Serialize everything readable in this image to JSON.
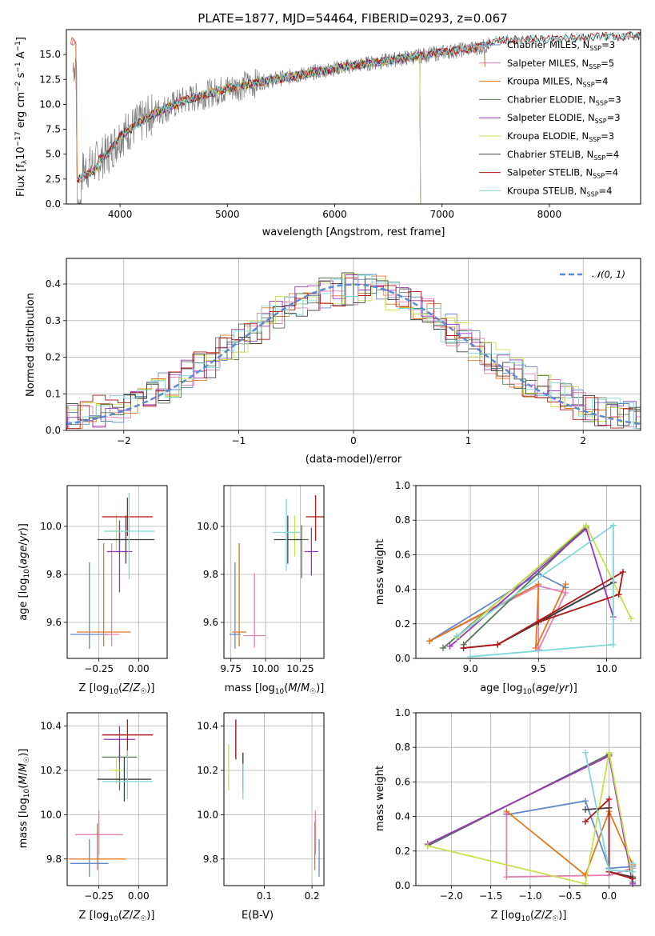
{
  "colors": {
    "chabrier_miles": "#6688cc",
    "salpeter_miles": "#e87fb4",
    "kroupa_miles": "#e07820",
    "chabrier_elodie": "#557755",
    "salpeter_elodie": "#9933bb",
    "kroupa_elodie": "#c8e050",
    "chabrier_stelib": "#404040",
    "salpeter_stelib": "#b01818",
    "kroupa_stelib": "#7fd8d8",
    "data": "#808080",
    "normal": "#5b8bd6"
  },
  "chart_data": [
    {
      "id": "spectrum",
      "type": "line",
      "title": "PLATE=1877, MJD=54464, FIBERID=0293, z=0.067",
      "xlabel": "wavelength [Angstrom, rest frame]",
      "ylabel": "Flux [f_λ10^-17 erg cm^-2 s^-1 A^-1]",
      "xlim": [
        3500,
        8850
      ],
      "ylim": [
        0,
        17.5
      ],
      "xticks": [
        "4000",
        "5000",
        "6000",
        "7000",
        "8000"
      ],
      "yticks": [
        "0.0",
        "2.5",
        "5.0",
        "7.5",
        "10.0",
        "12.5",
        "15.0"
      ],
      "grid": true,
      "legend_position": "upper-right",
      "series": [
        {
          "name": "Chabrier MILES, N_SSP=3",
          "key": "chabrier_miles"
        },
        {
          "name": "Salpeter MILES, N_SSP=5",
          "key": "salpeter_miles"
        },
        {
          "name": "Kroupa MILES, N_SSP=4",
          "key": "kroupa_miles"
        },
        {
          "name": "Chabrier ELODIE, N_SSP=3",
          "key": "chabrier_elodie"
        },
        {
          "name": "Salpeter ELODIE, N_SSP=3",
          "key": "salpeter_elodie"
        },
        {
          "name": "Kroupa ELODIE, N_SSP=3",
          "key": "kroupa_elodie"
        },
        {
          "name": "Chabrier STELIB, N_SSP=4",
          "key": "chabrier_stelib"
        },
        {
          "name": "Salpeter STELIB, N_SSP=4",
          "key": "salpeter_stelib"
        },
        {
          "name": "Kroupa STELIB, N_SSP=4",
          "key": "kroupa_stelib"
        }
      ],
      "continuum": [
        [
          3600,
          3.0
        ],
        [
          3700,
          3.6
        ],
        [
          3900,
          5.2
        ],
        [
          4000,
          6.8
        ],
        [
          4300,
          9.0
        ],
        [
          4600,
          10.4
        ],
        [
          5000,
          11.6
        ],
        [
          5500,
          12.6
        ],
        [
          6000,
          13.6
        ],
        [
          6500,
          14.4
        ],
        [
          7000,
          15.2
        ],
        [
          7400,
          15.8
        ],
        [
          7500,
          16.4
        ],
        [
          8000,
          16.6
        ],
        [
          8850,
          16.9
        ]
      ],
      "model_coverage": {
        "miles": [
          3540,
          7400
        ],
        "elodie": [
          3600,
          6800
        ],
        "stelib": [
          3600,
          8850
        ]
      }
    },
    {
      "id": "residuals",
      "type": "line",
      "xlabel": "(data-model)/error",
      "ylabel": "Normed distribution",
      "xlim": [
        -2.5,
        2.5
      ],
      "ylim": [
        0,
        0.47
      ],
      "xticks": [
        "−2",
        "−1",
        "0",
        "1",
        "2"
      ],
      "yticks": [
        "0.0",
        "0.1",
        "0.2",
        "0.3",
        "0.4"
      ],
      "grid": true,
      "legend_position": "upper-right",
      "legend": "N(0,1)",
      "gaussian": {
        "mean": 0,
        "sigma": 1
      }
    },
    {
      "id": "age_vs_Z",
      "type": "scatter",
      "xlabel": "Z [log10(Z/Z☉)]",
      "ylabel": "age  [log10(age/yr)]",
      "xlim": [
        -0.45,
        0.18
      ],
      "ylim": [
        9.45,
        10.17
      ],
      "xticks": [
        "−0.25",
        "0.00"
      ],
      "yticks": [
        "9.6",
        "9.8",
        "10.0"
      ],
      "grid": true,
      "points": [
        {
          "key": "chabrier_miles",
          "x": -0.31,
          "y": 9.55,
          "xerr": 0.12,
          "yerr": [
            0.06,
            0.3
          ]
        },
        {
          "key": "salpeter_miles",
          "x": -0.17,
          "y": 9.55,
          "xerr": 0.05,
          "yerr": [
            0.05,
            0.38
          ]
        },
        {
          "key": "kroupa_miles",
          "x": -0.22,
          "y": 9.56,
          "xerr": 0.17,
          "yerr": [
            0.06,
            0.37
          ]
        },
        {
          "key": "chabrier_elodie",
          "x": -0.12,
          "y": 9.945,
          "xerr": 0.06,
          "yerr": [
            0.06,
            0.06
          ]
        },
        {
          "key": "salpeter_elodie",
          "x": -0.12,
          "y": 9.895,
          "xerr": 0.08,
          "yerr": [
            0.17,
            0.13
          ]
        },
        {
          "key": "kroupa_elodie",
          "x": -0.14,
          "y": 9.98,
          "xerr": 0.04,
          "yerr": [
            0.08,
            0.07
          ]
        },
        {
          "key": "chabrier_stelib",
          "x": -0.08,
          "y": 9.945,
          "xerr": 0.18,
          "yerr": [
            0.1,
            0.1
          ]
        },
        {
          "key": "salpeter_stelib",
          "x": -0.07,
          "y": 10.04,
          "xerr": 0.16,
          "yerr": [
            0.08,
            0.08
          ]
        },
        {
          "key": "kroupa_stelib",
          "x": -0.06,
          "y": 9.98,
          "xerr": 0.16,
          "yerr": [
            0.2,
            0.16
          ]
        }
      ]
    },
    {
      "id": "age_vs_mass",
      "type": "scatter",
      "xlabel": "mass [log10(M/M☉)]",
      "ylabel": "",
      "xlim": [
        9.7,
        10.42
      ],
      "ylim": [
        9.45,
        10.17
      ],
      "xticks": [
        "9.75",
        "10.00",
        "10.25"
      ],
      "yticks": [
        "9.6",
        "9.8",
        "10.0"
      ],
      "grid": true,
      "points": [
        {
          "key": "chabrier_miles",
          "x": 9.78,
          "y": 9.55,
          "xerr": 0.04,
          "yerr": [
            0.06,
            0.3
          ]
        },
        {
          "key": "salpeter_miles",
          "x": 9.92,
          "y": 9.545,
          "xerr": 0.08,
          "yerr": [
            0.05,
            0.26
          ]
        },
        {
          "key": "kroupa_miles",
          "x": 9.81,
          "y": 9.56,
          "xerr": 0.05,
          "yerr": [
            0.06,
            0.37
          ]
        },
        {
          "key": "chabrier_elodie",
          "x": 10.26,
          "y": 9.945,
          "xerr": 0.05,
          "yerr": [
            0.16,
            0.06
          ]
        },
        {
          "key": "salpeter_elodie",
          "x": 10.33,
          "y": 9.895,
          "xerr": 0.05,
          "yerr": [
            0.1,
            0.1
          ]
        },
        {
          "key": "kroupa_elodie",
          "x": 10.21,
          "y": 9.975,
          "xerr": 0.04,
          "yerr": [
            0.1,
            0.07
          ]
        },
        {
          "key": "chabrier_stelib",
          "x": 10.16,
          "y": 9.945,
          "xerr": 0.1,
          "yerr": [
            0.1,
            0.1
          ]
        },
        {
          "key": "salpeter_stelib",
          "x": 10.36,
          "y": 10.04,
          "xerr": 0.07,
          "yerr": [
            0.1,
            0.09
          ]
        },
        {
          "key": "kroupa_stelib",
          "x": 10.15,
          "y": 9.975,
          "xerr": 0.1,
          "yerr": [
            0.16,
            0.14
          ]
        }
      ]
    },
    {
      "id": "weight_vs_age",
      "type": "line",
      "xlabel": "age  [log10(age/yr)]",
      "ylabel": "mass weight",
      "xlim": [
        8.6,
        10.25
      ],
      "ylim": [
        0,
        1
      ],
      "xticks": [
        "9.0",
        "9.5",
        "10.0"
      ],
      "yticks": [
        "0.0",
        "0.2",
        "0.4",
        "0.6",
        "0.8",
        "1.0"
      ],
      "grid": true,
      "series": [
        {
          "key": "chabrier_miles",
          "x": [
            8.7,
            9.5,
            9.7
          ],
          "y": [
            0.1,
            0.49,
            0.41
          ]
        },
        {
          "key": "salpeter_miles",
          "x": [
            8.7,
            9.5,
            9.7,
            9.5,
            9.5
          ],
          "y": [
            0.1,
            0.42,
            0.38,
            0.05,
            0.42
          ]
        },
        {
          "key": "kroupa_miles",
          "x": [
            8.7,
            9.5,
            9.48,
            9.7
          ],
          "y": [
            0.1,
            0.43,
            0.06,
            0.43
          ]
        },
        {
          "key": "chabrier_elodie",
          "x": [
            8.8,
            9.85,
            8.95
          ],
          "y": [
            0.06,
            0.76,
            0.08
          ]
        },
        {
          "key": "salpeter_elodie",
          "x": [
            8.85,
            9.85,
            10.05
          ],
          "y": [
            0.07,
            0.75,
            0.24
          ]
        },
        {
          "key": "kroupa_elodie",
          "x": [
            8.9,
            9.85,
            10.18
          ],
          "y": [
            0.12,
            0.77,
            0.23
          ]
        },
        {
          "key": "chabrier_stelib",
          "x": [
            8.95,
            9.2,
            10.05,
            9.5
          ],
          "y": [
            0.06,
            0.08,
            0.44,
            0.21
          ]
        },
        {
          "key": "salpeter_stelib",
          "x": [
            8.95,
            9.2,
            10.12,
            10.09,
            9.5
          ],
          "y": [
            0.06,
            0.08,
            0.5,
            0.37,
            0.21
          ]
        },
        {
          "key": "kroupa_stelib",
          "x": [
            9.0,
            10.05,
            10.05,
            8.9
          ],
          "y": [
            0.01,
            0.08,
            0.77,
            0.13
          ]
        }
      ]
    },
    {
      "id": "mass_vs_Z",
      "type": "scatter",
      "xlabel": "Z [log10(Z/Z☉)]",
      "ylabel": "mass [log10(M/M☉)]",
      "xlim": [
        -0.45,
        0.18
      ],
      "ylim": [
        9.68,
        10.46
      ],
      "xticks": [
        "−0.25",
        "0.00"
      ],
      "yticks": [
        "9.8",
        "10.0",
        "10.2",
        "10.4"
      ],
      "grid": true,
      "points": [
        {
          "key": "chabrier_miles",
          "x": -0.31,
          "y": 9.78,
          "xerr": 0.12,
          "yerr": [
            0.06,
            0.11
          ]
        },
        {
          "key": "salpeter_miles",
          "x": -0.25,
          "y": 9.91,
          "xerr": 0.15,
          "yerr": [
            0.09,
            0.11
          ]
        },
        {
          "key": "kroupa_miles",
          "x": -0.26,
          "y": 9.8,
          "xerr": 0.18,
          "yerr": [
            0.05,
            0.16
          ]
        },
        {
          "key": "chabrier_elodie",
          "x": -0.12,
          "y": 10.26,
          "xerr": 0.11,
          "yerr": [
            0.15,
            0.06
          ]
        },
        {
          "key": "salpeter_elodie",
          "x": -0.12,
          "y": 10.34,
          "xerr": 0.1,
          "yerr": [
            0.1,
            0.06
          ]
        },
        {
          "key": "kroupa_elodie",
          "x": -0.14,
          "y": 10.2,
          "xerr": 0.04,
          "yerr": [
            0.06,
            0.06
          ]
        },
        {
          "key": "chabrier_stelib",
          "x": -0.09,
          "y": 10.16,
          "xerr": 0.17,
          "yerr": [
            0.1,
            0.1
          ]
        },
        {
          "key": "salpeter_stelib",
          "x": -0.07,
          "y": 10.36,
          "xerr": 0.16,
          "yerr": [
            0.1,
            0.07
          ]
        },
        {
          "key": "kroupa_stelib",
          "x": -0.07,
          "y": 10.15,
          "xerr": 0.16,
          "yerr": [
            0.08,
            0.14
          ]
        }
      ]
    },
    {
      "id": "mass_vs_ebv",
      "type": "scatter",
      "xlabel": "E(B-V)",
      "ylabel": "",
      "xlim": [
        0.015,
        0.225
      ],
      "ylim": [
        9.68,
        10.46
      ],
      "xticks": [
        "0.1",
        "0.2"
      ],
      "yticks": [
        "9.8",
        "10.0",
        "10.2",
        "10.4"
      ],
      "grid": true,
      "points": [
        {
          "key": "chabrier_miles",
          "x": 0.215,
          "y": 9.8,
          "yerr": [
            0.08,
            0.09
          ]
        },
        {
          "key": "salpeter_miles",
          "x": 0.207,
          "y": 9.92,
          "yerr": [
            0.1,
            0.1
          ]
        },
        {
          "key": "kroupa_miles",
          "x": 0.206,
          "y": 9.85,
          "yerr": [
            0.1,
            0.12
          ]
        },
        {
          "key": "chabrier_elodie",
          "x": 0.055,
          "y": 10.2,
          "yerr": [
            0.1,
            0.08
          ]
        },
        {
          "key": "salpeter_elodie",
          "x": 0.04,
          "y": 10.35,
          "yerr": [
            0.1,
            0.08
          ]
        },
        {
          "key": "kroupa_elodie",
          "x": 0.025,
          "y": 10.2,
          "yerr": [
            0.09,
            0.12
          ]
        },
        {
          "key": "chabrier_stelib",
          "x": 0.055,
          "y": 10.2,
          "yerr": [
            0.08,
            0.08
          ]
        },
        {
          "key": "salpeter_stelib",
          "x": 0.04,
          "y": 10.35,
          "yerr": [
            0.1,
            0.08
          ]
        },
        {
          "key": "kroupa_stelib",
          "x": 0.055,
          "y": 10.15,
          "yerr": [
            0.08,
            0.08
          ]
        }
      ]
    },
    {
      "id": "weight_vs_Z",
      "type": "line",
      "xlabel": "Z [log10(Z/Z☉)]",
      "ylabel": "mass weight",
      "xlim": [
        -2.45,
        0.4
      ],
      "ylim": [
        0,
        1
      ],
      "xticks": [
        "−2.0",
        "−1.5",
        "−1.0",
        "−0.5",
        "0.0"
      ],
      "yticks": [
        "0.0",
        "0.2",
        "0.4",
        "0.6",
        "0.8",
        "1.0"
      ],
      "grid": true,
      "series": [
        {
          "key": "chabrier_miles",
          "x": [
            -1.3,
            -0.3,
            0.0,
            0.3
          ],
          "y": [
            0.41,
            0.49,
            0.1,
            0.11
          ]
        },
        {
          "key": "salpeter_miles",
          "x": [
            -1.3,
            -1.3,
            0.0,
            0.3
          ],
          "y": [
            0.42,
            0.05,
            0.06,
            0.1
          ]
        },
        {
          "key": "kroupa_miles",
          "x": [
            -1.3,
            -0.3,
            0.0,
            0.3
          ],
          "y": [
            0.43,
            0.06,
            0.43,
            0.12
          ]
        },
        {
          "key": "chabrier_elodie",
          "x": [
            -2.3,
            0.0,
            0.3
          ],
          "y": [
            0.23,
            0.76,
            0.02
          ]
        },
        {
          "key": "salpeter_elodie",
          "x": [
            -2.3,
            0.0,
            0.3
          ],
          "y": [
            0.24,
            0.75,
            0.01
          ]
        },
        {
          "key": "kroupa_elodie",
          "x": [
            -2.3,
            -0.3,
            0.0,
            0.3
          ],
          "y": [
            0.23,
            0.01,
            0.77,
            0.04
          ]
        },
        {
          "key": "chabrier_stelib",
          "x": [
            -0.3,
            0.0,
            0.0,
            0.3
          ],
          "y": [
            0.44,
            0.45,
            0.08,
            0.05
          ]
        },
        {
          "key": "salpeter_stelib",
          "x": [
            -0.3,
            0.0,
            0.0,
            0.3
          ],
          "y": [
            0.37,
            0.5,
            0.08,
            0.04
          ]
        },
        {
          "key": "kroupa_stelib",
          "x": [
            -0.3,
            0.0,
            0.3,
            0.3
          ],
          "y": [
            0.77,
            0.09,
            0.08,
            0.13
          ]
        }
      ]
    }
  ]
}
